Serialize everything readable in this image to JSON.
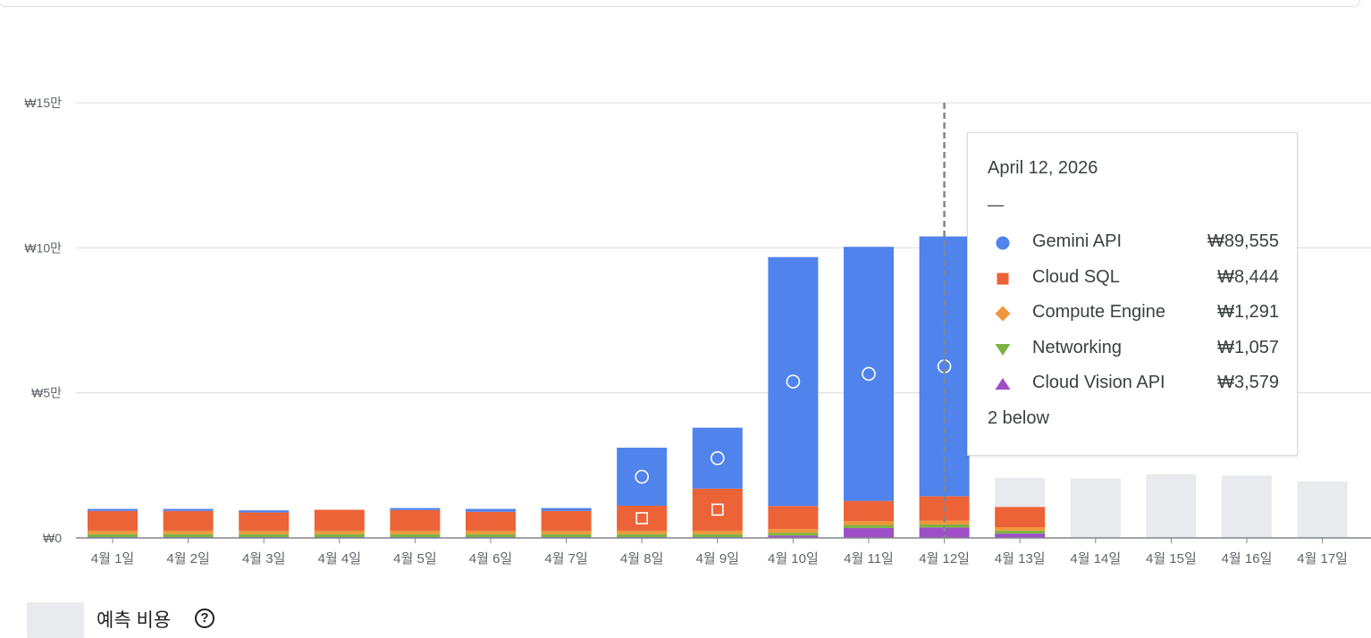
{
  "chart_data": {
    "type": "bar",
    "stacked": true,
    "categories": [
      "4월 1일",
      "4월 2일",
      "4월 3일",
      "4월 4일",
      "4월 5일",
      "4월 6일",
      "4월 7일",
      "4월 8일",
      "4월 9일",
      "4월 10일",
      "4월 11일",
      "4월 12일",
      "4월 13일",
      "4월 14일",
      "4월 15일",
      "4월 16일",
      "4월 17일"
    ],
    "y_ticks": [
      {
        "label": "₩0",
        "value": 0
      },
      {
        "label": "₩5만",
        "value": 50000
      },
      {
        "label": "₩10만",
        "value": 100000
      },
      {
        "label": "₩15만",
        "value": 150000
      }
    ],
    "ylim": [
      0,
      150000
    ],
    "grid": true,
    "series": [
      {
        "name": "Cloud Vision API",
        "color": "#9e4fc8",
        "values": [
          300,
          300,
          300,
          300,
          300,
          300,
          300,
          300,
          300,
          800,
          3400,
          3579,
          1500,
          0,
          0,
          0,
          0
        ]
      },
      {
        "name": "Networking",
        "color": "#7cb342",
        "values": [
          1000,
          1000,
          1000,
          1000,
          1000,
          1000,
          1000,
          1000,
          1000,
          1000,
          1057,
          1057,
          1000,
          0,
          0,
          0,
          0
        ]
      },
      {
        "name": "Compute Engine",
        "color": "#f0963c",
        "values": [
          1200,
          1200,
          1200,
          1200,
          1200,
          1200,
          1200,
          1200,
          1200,
          1200,
          1291,
          1291,
          1200,
          0,
          0,
          0,
          0
        ]
      },
      {
        "name": "Cloud SQL",
        "color": "#ec6337",
        "values": [
          6800,
          6800,
          6300,
          7200,
          7100,
          6500,
          6800,
          8600,
          14500,
          8000,
          7000,
          8444,
          7000,
          0,
          0,
          0,
          0
        ]
      },
      {
        "name": "Gemini API",
        "color": "#5083eb",
        "values": [
          700,
          700,
          700,
          0,
          700,
          1000,
          1000,
          20000,
          21000,
          85800,
          87600,
          89555,
          0,
          0,
          0,
          0,
          0
        ]
      },
      {
        "name": "예측 비용",
        "color": "#e8eaed",
        "values": [
          0,
          0,
          0,
          0,
          0,
          0,
          0,
          0,
          0,
          0,
          0,
          0,
          10000,
          20500,
          22000,
          21500,
          19500
        ]
      }
    ],
    "markers": [
      {
        "category": "4월 8일",
        "shape": "circle",
        "series": "Gemini API"
      },
      {
        "category": "4월 8일",
        "shape": "square",
        "series": "Cloud SQL"
      },
      {
        "category": "4월 9일",
        "shape": "circle",
        "series": "Gemini API"
      },
      {
        "category": "4월 9일",
        "shape": "square",
        "series": "Cloud SQL"
      },
      {
        "category": "4월 10일",
        "shape": "circle",
        "series": "Gemini API"
      },
      {
        "category": "4월 11일",
        "shape": "circle",
        "series": "Gemini API"
      },
      {
        "category": "4월 12일",
        "shape": "circle",
        "series": "Gemini API"
      }
    ],
    "hover_category": "4월 12일"
  },
  "tooltip": {
    "date": "April 12, 2026",
    "dash": "—",
    "rows": [
      {
        "name": "Gemini API",
        "value": "₩89,555",
        "shape": "circle",
        "color": "#5083eb"
      },
      {
        "name": "Cloud SQL",
        "value": "₩8,444",
        "shape": "square",
        "color": "#ec6337"
      },
      {
        "name": "Compute Engine",
        "value": "₩1,291",
        "shape": "diamond",
        "color": "#f0963c"
      },
      {
        "name": "Networking",
        "value": "₩1,057",
        "shape": "triangle-down",
        "color": "#7cb342"
      },
      {
        "name": "Cloud Vision API",
        "value": "₩3,579",
        "shape": "triangle-up",
        "color": "#9e4fc8"
      }
    ],
    "more": "2 below"
  },
  "legend": {
    "forecast_label": "예측 비용",
    "help_glyph": "?",
    "forecast_color": "#e8eaed"
  },
  "icons": {
    "help": "help-circle-icon"
  }
}
